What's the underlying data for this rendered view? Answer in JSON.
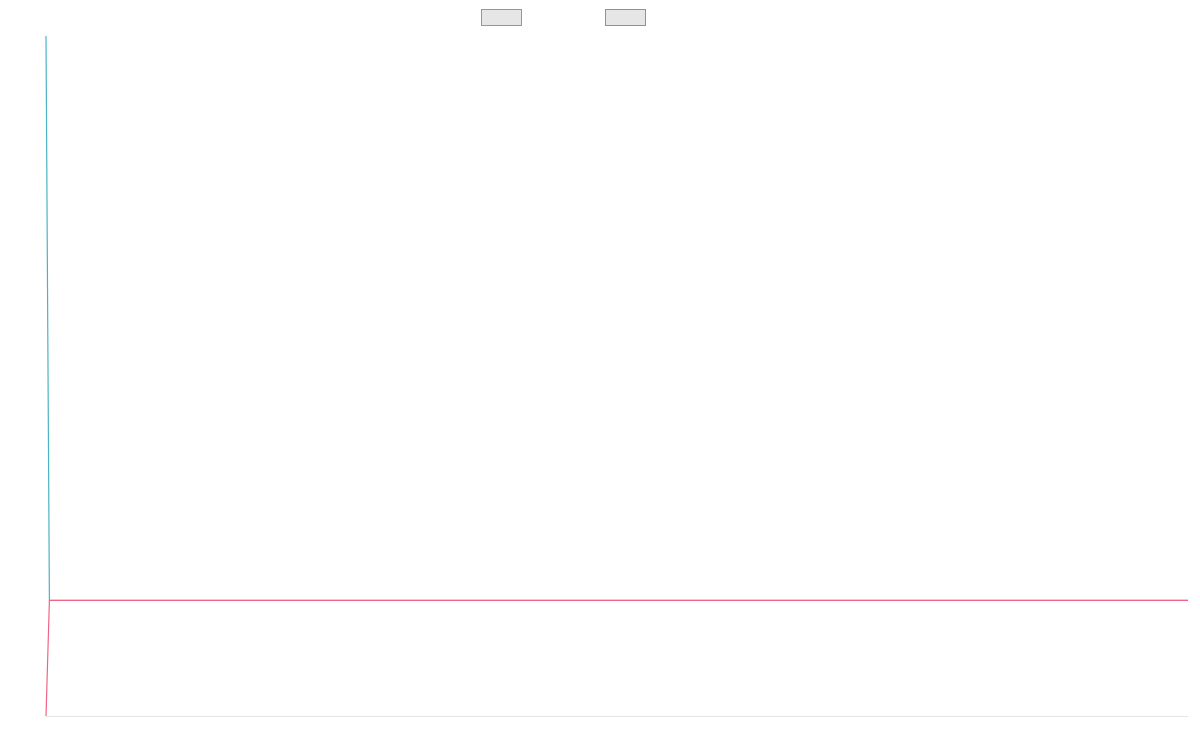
{
  "chart_data": {
    "type": "line",
    "title": "",
    "xlabel": "",
    "ylabel": "",
    "grid": false,
    "legend_position": "top-center",
    "ylim": [
      0,
      1
    ],
    "x": [
      0,
      0.003,
      1
    ],
    "series": [
      {
        "color": "#4bb3c2",
        "legend_fill": "#e6e6e6",
        "values": [
          1.0,
          0.17,
          0.17
        ]
      },
      {
        "color": "#f06484",
        "legend_fill": "#e6e6e6",
        "values": [
          0.0,
          0.17,
          0.17
        ]
      }
    ]
  }
}
